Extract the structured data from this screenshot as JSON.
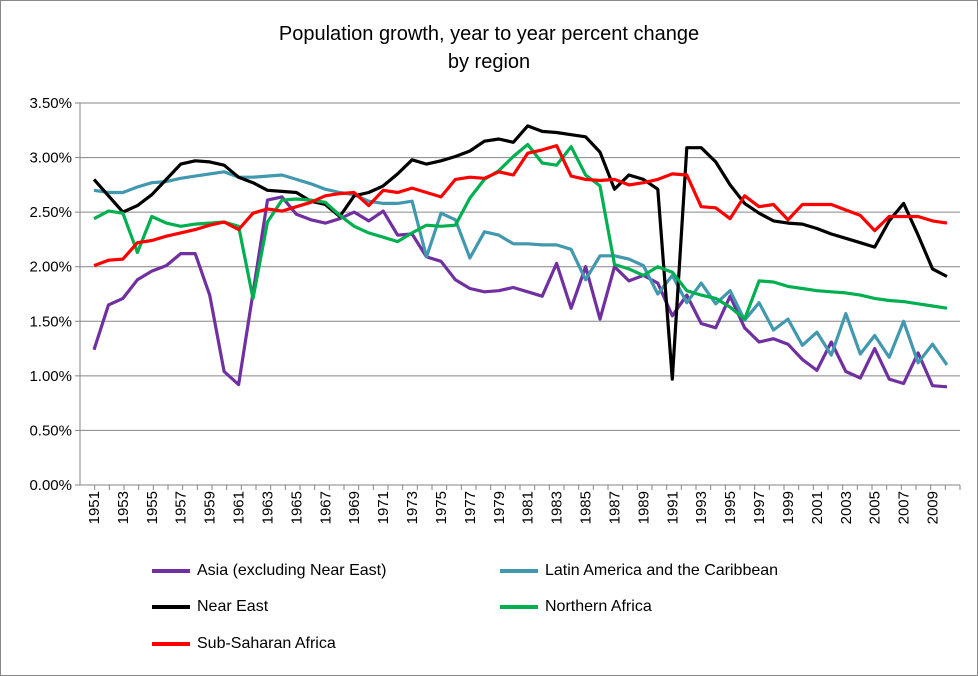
{
  "chart_data": {
    "type": "line",
    "title": "Population growth, year to year percent change",
    "subtitle": "by region",
    "xlabel": "",
    "ylabel": "",
    "ylim": [
      0,
      3.5
    ],
    "yticks": [
      "0.00%",
      "0.50%",
      "1.00%",
      "1.50%",
      "2.00%",
      "2.50%",
      "3.00%",
      "3.50%"
    ],
    "grid": true,
    "legend_position": "bottom",
    "x": [
      1951,
      1952,
      1953,
      1954,
      1955,
      1956,
      1957,
      1958,
      1959,
      1960,
      1961,
      1962,
      1963,
      1964,
      1965,
      1966,
      1967,
      1968,
      1969,
      1970,
      1971,
      1972,
      1973,
      1974,
      1975,
      1976,
      1977,
      1978,
      1979,
      1980,
      1981,
      1982,
      1983,
      1984,
      1985,
      1986,
      1987,
      1988,
      1989,
      1990,
      1991,
      1992,
      1993,
      1994,
      1995,
      1996,
      1997,
      1998,
      1999,
      2000,
      2001,
      2002,
      2003,
      2004,
      2005,
      2006,
      2007,
      2008,
      2009,
      2010
    ],
    "xtick_labels": [
      "1951",
      "1953",
      "1955",
      "1957",
      "1959",
      "1961",
      "1963",
      "1965",
      "1967",
      "1969",
      "1971",
      "1973",
      "1975",
      "1977",
      "1979",
      "1981",
      "1983",
      "1985",
      "1987",
      "1989",
      "1991",
      "1993",
      "1995",
      "1997",
      "1999",
      "2001",
      "2003",
      "2005",
      "2007",
      "2009"
    ],
    "series": [
      {
        "name": "Asia (excluding Near East)",
        "color": "#7030A0",
        "values": [
          1.24,
          1.65,
          1.71,
          1.88,
          1.96,
          2.01,
          2.12,
          2.12,
          1.74,
          1.04,
          0.92,
          1.76,
          2.61,
          2.64,
          2.48,
          2.43,
          2.4,
          2.44,
          2.5,
          2.42,
          2.51,
          2.29,
          2.3,
          2.09,
          2.05,
          1.88,
          1.8,
          1.77,
          1.78,
          1.81,
          1.77,
          1.73,
          2.03,
          1.62,
          2.0,
          1.52,
          2.0,
          1.87,
          1.92,
          1.85,
          1.55,
          1.74,
          1.48,
          1.44,
          1.73,
          1.44,
          1.31,
          1.34,
          1.29,
          1.15,
          1.05,
          1.31,
          1.04,
          0.98,
          1.25,
          0.97,
          0.93,
          1.21,
          0.91,
          0.9
        ]
      },
      {
        "name": "Latin America and the Caribbean",
        "color": "#4198AF",
        "values": [
          2.7,
          2.68,
          2.68,
          2.73,
          2.77,
          2.78,
          2.81,
          2.83,
          2.85,
          2.87,
          2.82,
          2.82,
          2.83,
          2.84,
          2.8,
          2.76,
          2.71,
          2.68,
          2.66,
          2.6,
          2.58,
          2.58,
          2.6,
          2.09,
          2.49,
          2.43,
          2.08,
          2.32,
          2.29,
          2.21,
          2.21,
          2.2,
          2.2,
          2.16,
          1.88,
          2.1,
          2.1,
          2.07,
          2.01,
          1.75,
          1.92,
          1.67,
          1.85,
          1.66,
          1.78,
          1.51,
          1.67,
          1.42,
          1.52,
          1.28,
          1.4,
          1.19,
          1.57,
          1.2,
          1.37,
          1.17,
          1.5,
          1.12,
          1.29,
          1.1
        ]
      },
      {
        "name": "Near East",
        "color": "#000000",
        "values": [
          2.8,
          2.65,
          2.5,
          2.56,
          2.66,
          2.8,
          2.94,
          2.97,
          2.96,
          2.93,
          2.82,
          2.77,
          2.7,
          2.69,
          2.68,
          2.6,
          2.57,
          2.46,
          2.65,
          2.68,
          2.74,
          2.85,
          2.98,
          2.94,
          2.97,
          3.01,
          3.06,
          3.15,
          3.17,
          3.14,
          3.29,
          3.24,
          3.23,
          3.21,
          3.19,
          3.05,
          2.71,
          2.84,
          2.8,
          2.71,
          0.97,
          3.09,
          3.09,
          2.96,
          2.75,
          2.58,
          2.49,
          2.42,
          2.4,
          2.39,
          2.35,
          2.3,
          2.26,
          2.22,
          2.18,
          2.42,
          2.58,
          2.29,
          1.98,
          1.91
        ]
      },
      {
        "name": "Northern Africa",
        "color": "#00B050",
        "values": [
          2.44,
          2.51,
          2.49,
          2.13,
          2.46,
          2.4,
          2.37,
          2.39,
          2.4,
          2.41,
          2.37,
          1.71,
          2.41,
          2.61,
          2.62,
          2.61,
          2.59,
          2.47,
          2.37,
          2.31,
          2.27,
          2.23,
          2.31,
          2.38,
          2.37,
          2.38,
          2.63,
          2.8,
          2.88,
          3.01,
          3.12,
          2.95,
          2.93,
          3.1,
          2.84,
          2.74,
          2.02,
          1.98,
          1.92,
          2.0,
          1.95,
          1.78,
          1.74,
          1.71,
          1.63,
          1.52,
          1.87,
          1.86,
          1.82,
          1.8,
          1.78,
          1.77,
          1.76,
          1.74,
          1.71,
          1.69,
          1.68,
          1.66,
          1.64,
          1.62
        ]
      },
      {
        "name": "Sub-Saharan Africa",
        "color": "#FF0000",
        "values": [
          2.01,
          2.06,
          2.07,
          2.22,
          2.24,
          2.28,
          2.31,
          2.34,
          2.38,
          2.41,
          2.34,
          2.49,
          2.53,
          2.51,
          2.55,
          2.59,
          2.65,
          2.67,
          2.68,
          2.56,
          2.7,
          2.68,
          2.72,
          2.68,
          2.64,
          2.8,
          2.82,
          2.81,
          2.87,
          2.84,
          3.04,
          3.07,
          3.11,
          2.83,
          2.8,
          2.79,
          2.8,
          2.75,
          2.77,
          2.8,
          2.85,
          2.84,
          2.55,
          2.54,
          2.44,
          2.65,
          2.55,
          2.57,
          2.43,
          2.57,
          2.57,
          2.57,
          2.52,
          2.47,
          2.33,
          2.46,
          2.46,
          2.46,
          2.42,
          2.4
        ]
      }
    ]
  }
}
